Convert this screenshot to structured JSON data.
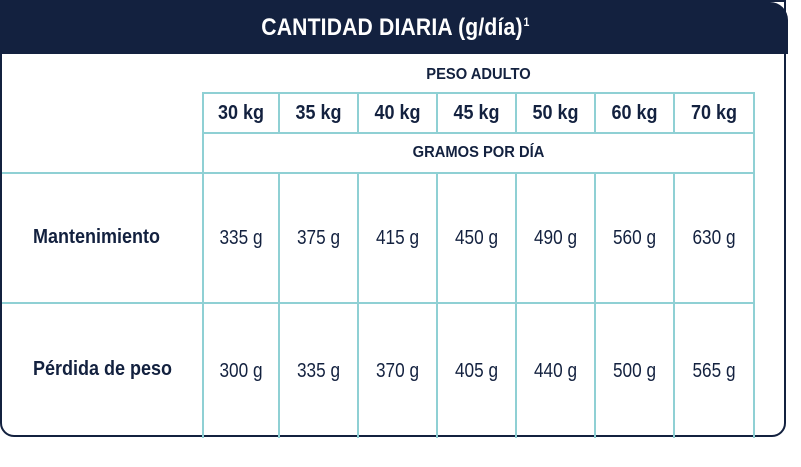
{
  "title": {
    "text": "CANTIDAD DIARIA (g/día)",
    "superscript": "1"
  },
  "table": {
    "group_header": "PESO ADULTO",
    "units_header": "GRAMOS POR DÍA",
    "columns": [
      "30 kg",
      "35 kg",
      "40 kg",
      "45 kg",
      "50 kg",
      "60 kg",
      "70 kg"
    ],
    "rows": [
      {
        "label": "Mantenimiento",
        "values": [
          "335 g",
          "375 g",
          "415 g",
          "450 g",
          "490 g",
          "560 g",
          "630 g"
        ]
      },
      {
        "label": "Pérdida de peso",
        "values": [
          "300 g",
          "335 g",
          "370 g",
          "405 g",
          "440 g",
          "500 g",
          "565 g"
        ]
      }
    ]
  },
  "colors": {
    "navy": "#13213f",
    "teal_grid": "#8fd0d4"
  }
}
